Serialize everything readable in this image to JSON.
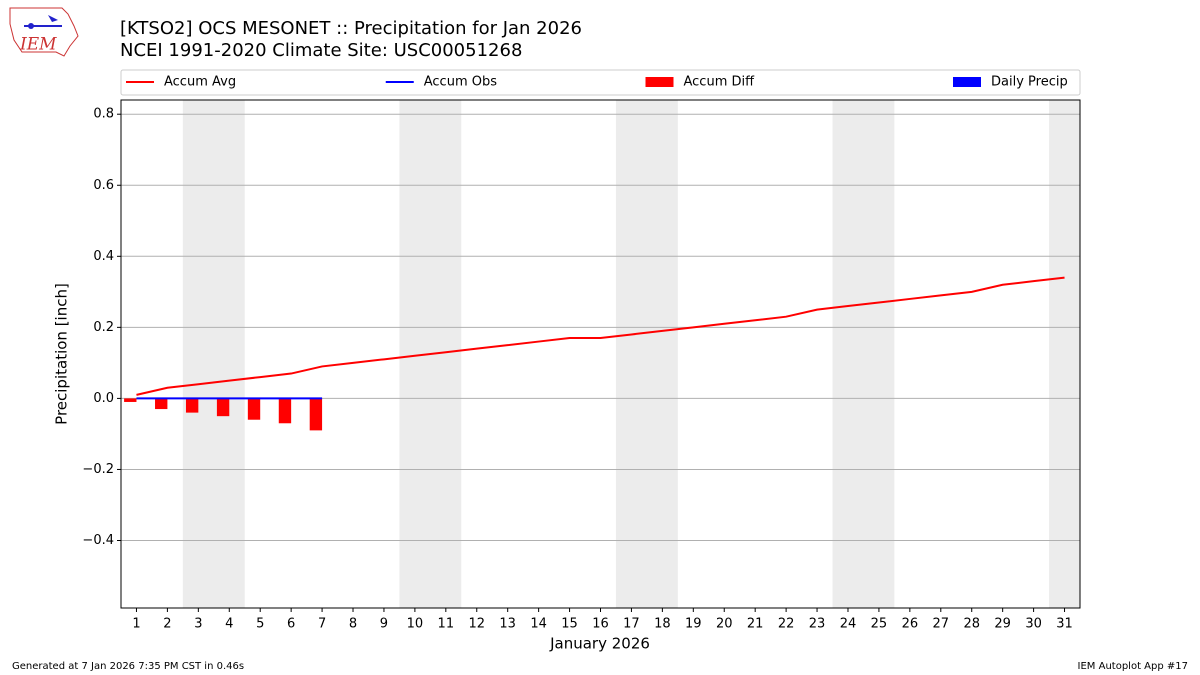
{
  "logo_text": "IEM",
  "footer_left": "Generated at 7 Jan 2026 7:35 PM CST in 0.46s",
  "footer_right": "IEM Autoplot App #17",
  "chart_data": {
    "type": "line",
    "title": "[KTSO2] OCS MESONET :: Precipitation for Jan 2026",
    "subtitle": "NCEI 1991-2020 Climate Site: USC00051268",
    "xlabel": "January 2026",
    "ylabel": "Precipitation [inch]",
    "x": [
      1,
      2,
      3,
      4,
      5,
      6,
      7,
      8,
      9,
      10,
      11,
      12,
      13,
      14,
      15,
      16,
      17,
      18,
      19,
      20,
      21,
      22,
      23,
      24,
      25,
      26,
      27,
      28,
      29,
      30,
      31
    ],
    "series": [
      {
        "name": "Accum Avg",
        "type": "line",
        "color": "#ff0000",
        "values": [
          0.01,
          0.03,
          0.04,
          0.05,
          0.06,
          0.07,
          0.09,
          0.1,
          0.11,
          0.12,
          0.13,
          0.14,
          0.15,
          0.16,
          0.17,
          0.17,
          0.18,
          0.19,
          0.2,
          0.21,
          0.22,
          0.23,
          0.25,
          0.26,
          0.27,
          0.28,
          0.29,
          0.3,
          0.32,
          0.33,
          0.34
        ]
      },
      {
        "name": "Accum Obs",
        "type": "line",
        "color": "#0000ff",
        "values": [
          0,
          0,
          0,
          0,
          0,
          0,
          0,
          null,
          null,
          null,
          null,
          null,
          null,
          null,
          null,
          null,
          null,
          null,
          null,
          null,
          null,
          null,
          null,
          null,
          null,
          null,
          null,
          null,
          null,
          null,
          null
        ]
      },
      {
        "name": "Accum Diff",
        "type": "bar",
        "color": "#ff0000",
        "values": [
          -0.01,
          -0.03,
          -0.04,
          -0.05,
          -0.06,
          -0.07,
          -0.09,
          null,
          null,
          null,
          null,
          null,
          null,
          null,
          null,
          null,
          null,
          null,
          null,
          null,
          null,
          null,
          null,
          null,
          null,
          null,
          null,
          null,
          null,
          null,
          null
        ]
      },
      {
        "name": "Daily Precip",
        "type": "bar",
        "color": "#0000ff",
        "values": [
          0,
          0,
          0,
          0,
          0,
          0,
          0,
          null,
          null,
          null,
          null,
          null,
          null,
          null,
          null,
          null,
          null,
          null,
          null,
          null,
          null,
          null,
          null,
          null,
          null,
          null,
          null,
          null,
          null,
          null,
          null
        ]
      }
    ],
    "shaded_ranges": [
      [
        2.5,
        4.5
      ],
      [
        9.5,
        11.5
      ],
      [
        16.5,
        18.5
      ],
      [
        23.5,
        25.5
      ],
      [
        30.5,
        31.5
      ]
    ],
    "shade_color": "#ececec",
    "xlim": [
      0.5,
      31.5
    ],
    "xticks": [
      1,
      2,
      3,
      4,
      5,
      6,
      7,
      8,
      9,
      10,
      11,
      12,
      13,
      14,
      15,
      16,
      17,
      18,
      19,
      20,
      21,
      22,
      23,
      24,
      25,
      26,
      27,
      28,
      29,
      30,
      31
    ],
    "ylim": [
      -0.59,
      0.84
    ],
    "yticks": [
      {
        "value": -0.4,
        "label": "−0.4"
      },
      {
        "value": -0.2,
        "label": "−0.2"
      },
      {
        "value": 0,
        "label": "0.0"
      },
      0.2,
      0.4,
      0.6,
      0.8
    ],
    "grid": true
  }
}
